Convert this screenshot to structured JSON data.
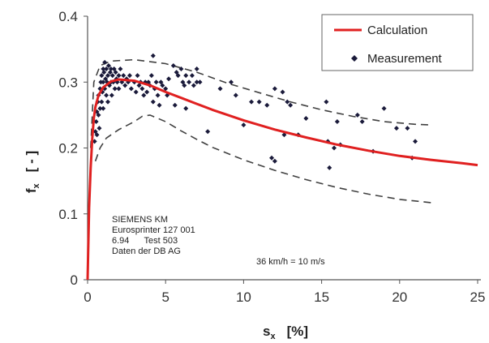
{
  "chart_data": {
    "type": "scatter",
    "title": "",
    "xlabel": {
      "main": "s",
      "sub": "x",
      "unit": "[%]"
    },
    "ylabel": {
      "main": "f",
      "sub": "x",
      "unit": "[ - ]"
    },
    "xlim": [
      0,
      25
    ],
    "ylim": [
      0,
      0.4
    ],
    "x_ticks": [
      "0",
      "5",
      "10",
      "15",
      "20",
      "25"
    ],
    "y_ticks": [
      "0",
      "0.1",
      "0.2",
      "0.3",
      "0.4"
    ],
    "grid": false,
    "legend": {
      "placement": "top-right",
      "entries": [
        {
          "label": "Calculation",
          "marker": "line",
          "color": "#e02020"
        },
        {
          "label": "Measurement",
          "marker": "diamond",
          "color": "#1a1a3a"
        }
      ]
    },
    "annotations": {
      "vehicle_block": [
        "SIEMENS KM",
        "Eurosprinter 127 001",
        "6.94      Test 503",
        "Daten der DB AG"
      ],
      "speed": "36 km/h = 10 m/s"
    },
    "series": [
      {
        "name": "Calculation",
        "style": "line",
        "color": "#e02020",
        "points": [
          [
            0,
            0
          ],
          [
            0.1,
            0.11
          ],
          [
            0.2,
            0.17
          ],
          [
            0.3,
            0.215
          ],
          [
            0.4,
            0.245
          ],
          [
            0.5,
            0.262
          ],
          [
            0.7,
            0.28
          ],
          [
            1.0,
            0.292
          ],
          [
            1.5,
            0.301
          ],
          [
            2.0,
            0.304
          ],
          [
            3.0,
            0.302
          ],
          [
            4.0,
            0.295
          ],
          [
            5.0,
            0.285
          ],
          [
            6.0,
            0.276
          ],
          [
            7.0,
            0.267
          ],
          [
            8.0,
            0.258
          ],
          [
            10.0,
            0.242
          ],
          [
            12.0,
            0.228
          ],
          [
            14.0,
            0.216
          ],
          [
            16.0,
            0.205
          ],
          [
            18.0,
            0.196
          ],
          [
            20.0,
            0.188
          ],
          [
            22.0,
            0.182
          ],
          [
            24.0,
            0.177
          ],
          [
            25.0,
            0.174
          ]
        ]
      },
      {
        "name": "Measurement",
        "style": "scatter",
        "color": "#1a1a3a",
        "points": [
          [
            0.45,
            0.21
          ],
          [
            0.5,
            0.225
          ],
          [
            0.55,
            0.24
          ],
          [
            0.6,
            0.255
          ],
          [
            0.6,
            0.22
          ],
          [
            0.65,
            0.27
          ],
          [
            0.7,
            0.25
          ],
          [
            0.7,
            0.28
          ],
          [
            0.75,
            0.23
          ],
          [
            0.8,
            0.29
          ],
          [
            0.8,
            0.26
          ],
          [
            0.85,
            0.3
          ],
          [
            0.9,
            0.27
          ],
          [
            0.9,
            0.31
          ],
          [
            0.95,
            0.285
          ],
          [
            1.0,
            0.3
          ],
          [
            1.0,
            0.32
          ],
          [
            1.0,
            0.26
          ],
          [
            1.05,
            0.315
          ],
          [
            1.1,
            0.29
          ],
          [
            1.1,
            0.33
          ],
          [
            1.15,
            0.305
          ],
          [
            1.2,
            0.28
          ],
          [
            1.2,
            0.32
          ],
          [
            1.25,
            0.3
          ],
          [
            1.3,
            0.31
          ],
          [
            1.3,
            0.27
          ],
          [
            1.35,
            0.325
          ],
          [
            1.4,
            0.295
          ],
          [
            1.45,
            0.315
          ],
          [
            1.5,
            0.3
          ],
          [
            1.5,
            0.32
          ],
          [
            1.55,
            0.28
          ],
          [
            1.6,
            0.31
          ],
          [
            1.65,
            0.3
          ],
          [
            1.7,
            0.32
          ],
          [
            1.75,
            0.29
          ],
          [
            1.8,
            0.315
          ],
          [
            1.85,
            0.305
          ],
          [
            1.9,
            0.3
          ],
          [
            2.0,
            0.31
          ],
          [
            2.0,
            0.29
          ],
          [
            2.1,
            0.32
          ],
          [
            2.2,
            0.3
          ],
          [
            2.3,
            0.31
          ],
          [
            2.4,
            0.295
          ],
          [
            2.5,
            0.305
          ],
          [
            2.6,
            0.3
          ],
          [
            2.7,
            0.31
          ],
          [
            2.8,
            0.29
          ],
          [
            3.0,
            0.3
          ],
          [
            3.1,
            0.285
          ],
          [
            3.2,
            0.31
          ],
          [
            3.3,
            0.295
          ],
          [
            3.4,
            0.3
          ],
          [
            3.5,
            0.29
          ],
          [
            3.6,
            0.28
          ],
          [
            3.7,
            0.3
          ],
          [
            3.8,
            0.285
          ],
          [
            3.9,
            0.3
          ],
          [
            4.0,
            0.295
          ],
          [
            4.1,
            0.31
          ],
          [
            4.2,
            0.27
          ],
          [
            4.3,
            0.29
          ],
          [
            4.4,
            0.3
          ],
          [
            4.5,
            0.28
          ],
          [
            4.6,
            0.265
          ],
          [
            4.7,
            0.3
          ],
          [
            4.8,
            0.295
          ],
          [
            5.0,
            0.29
          ],
          [
            5.1,
            0.28
          ],
          [
            5.2,
            0.305
          ],
          [
            4.2,
            0.34
          ],
          [
            5.5,
            0.325
          ],
          [
            5.7,
            0.315
          ],
          [
            5.8,
            0.31
          ],
          [
            6.0,
            0.32
          ],
          [
            6.1,
            0.3
          ],
          [
            6.2,
            0.295
          ],
          [
            6.3,
            0.31
          ],
          [
            6.5,
            0.3
          ],
          [
            6.7,
            0.31
          ],
          [
            6.8,
            0.295
          ],
          [
            7.0,
            0.3
          ],
          [
            7.0,
            0.32
          ],
          [
            7.2,
            0.3
          ],
          [
            5.6,
            0.265
          ],
          [
            6.3,
            0.26
          ],
          [
            7.7,
            0.225
          ],
          [
            8.5,
            0.29
          ],
          [
            9.2,
            0.3
          ],
          [
            9.5,
            0.28
          ],
          [
            10.0,
            0.235
          ],
          [
            10.5,
            0.27
          ],
          [
            11.0,
            0.27
          ],
          [
            11.5,
            0.265
          ],
          [
            11.8,
            0.185
          ],
          [
            12.0,
            0.18
          ],
          [
            12.0,
            0.29
          ],
          [
            12.5,
            0.285
          ],
          [
            12.6,
            0.22
          ],
          [
            12.8,
            0.27
          ],
          [
            13.0,
            0.265
          ],
          [
            13.5,
            0.22
          ],
          [
            14.0,
            0.245
          ],
          [
            15.3,
            0.27
          ],
          [
            15.4,
            0.21
          ],
          [
            15.5,
            0.17
          ],
          [
            15.8,
            0.2
          ],
          [
            16.0,
            0.24
          ],
          [
            16.2,
            0.205
          ],
          [
            17.3,
            0.25
          ],
          [
            17.6,
            0.24
          ],
          [
            18.3,
            0.195
          ],
          [
            19.0,
            0.26
          ],
          [
            19.8,
            0.23
          ],
          [
            20.5,
            0.23
          ],
          [
            20.8,
            0.185
          ],
          [
            21.0,
            0.21
          ]
        ]
      },
      {
        "name": "Upper bound",
        "style": "dashed",
        "color": "#404040",
        "points": [
          [
            0.2,
            0.2
          ],
          [
            0.4,
            0.3
          ],
          [
            0.8,
            0.325
          ],
          [
            1.5,
            0.332
          ],
          [
            3,
            0.334
          ],
          [
            5,
            0.328
          ],
          [
            7,
            0.315
          ],
          [
            9,
            0.298
          ],
          [
            11,
            0.284
          ],
          [
            13,
            0.27
          ],
          [
            15,
            0.258
          ],
          [
            17,
            0.248
          ],
          [
            19,
            0.24
          ],
          [
            21,
            0.236
          ],
          [
            22,
            0.235
          ]
        ]
      },
      {
        "name": "Lower bound",
        "style": "dashed",
        "color": "#404040",
        "points": [
          [
            0.5,
            0.18
          ],
          [
            0.8,
            0.2
          ],
          [
            1.2,
            0.215
          ],
          [
            2,
            0.228
          ],
          [
            3,
            0.24
          ],
          [
            3.5,
            0.248
          ],
          [
            4,
            0.25
          ],
          [
            5,
            0.24
          ],
          [
            6,
            0.226
          ],
          [
            7,
            0.213
          ],
          [
            8,
            0.201
          ],
          [
            10,
            0.182
          ],
          [
            12,
            0.166
          ],
          [
            14,
            0.152
          ],
          [
            16,
            0.14
          ],
          [
            18,
            0.13
          ],
          [
            20,
            0.122
          ],
          [
            22,
            0.117
          ]
        ]
      }
    ]
  }
}
